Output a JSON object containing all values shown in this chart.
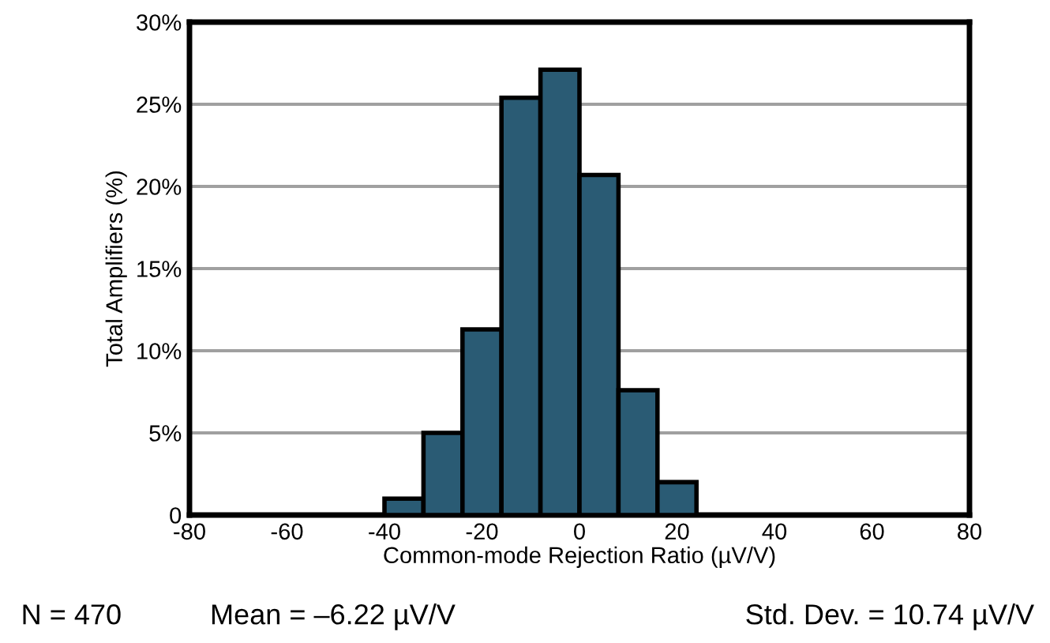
{
  "chart_data": {
    "type": "histogram",
    "xlabel": "Common-mode Rejection Ratio (µV/V)",
    "ylabel": "Total Amplifiers (%)",
    "bins": [
      -40,
      -32,
      -24,
      -16,
      -8,
      0,
      8,
      16,
      24
    ],
    "values": [
      1.0,
      5.0,
      11.3,
      25.4,
      27.1,
      20.7,
      7.6,
      2.0
    ],
    "color": "#2a5b74",
    "xlim": [
      -80,
      80
    ],
    "xticks": [
      -80,
      -60,
      -40,
      -20,
      0,
      20,
      40,
      60,
      80
    ],
    "ylim": [
      0,
      30
    ],
    "yticks": [
      0,
      {
        "value": 5,
        "label": "5%"
      },
      {
        "value": 10,
        "label": "10%"
      },
      {
        "value": 15,
        "label": "15%"
      },
      {
        "value": 20,
        "label": "20%"
      },
      {
        "value": 25,
        "label": "25%"
      },
      {
        "value": 30,
        "label": "30%"
      }
    ],
    "grid": "y",
    "annotations": [
      "N = 470",
      "Mean = –6.22 µV/V",
      "Std. Dev. = 10.74 µV/V"
    ]
  }
}
